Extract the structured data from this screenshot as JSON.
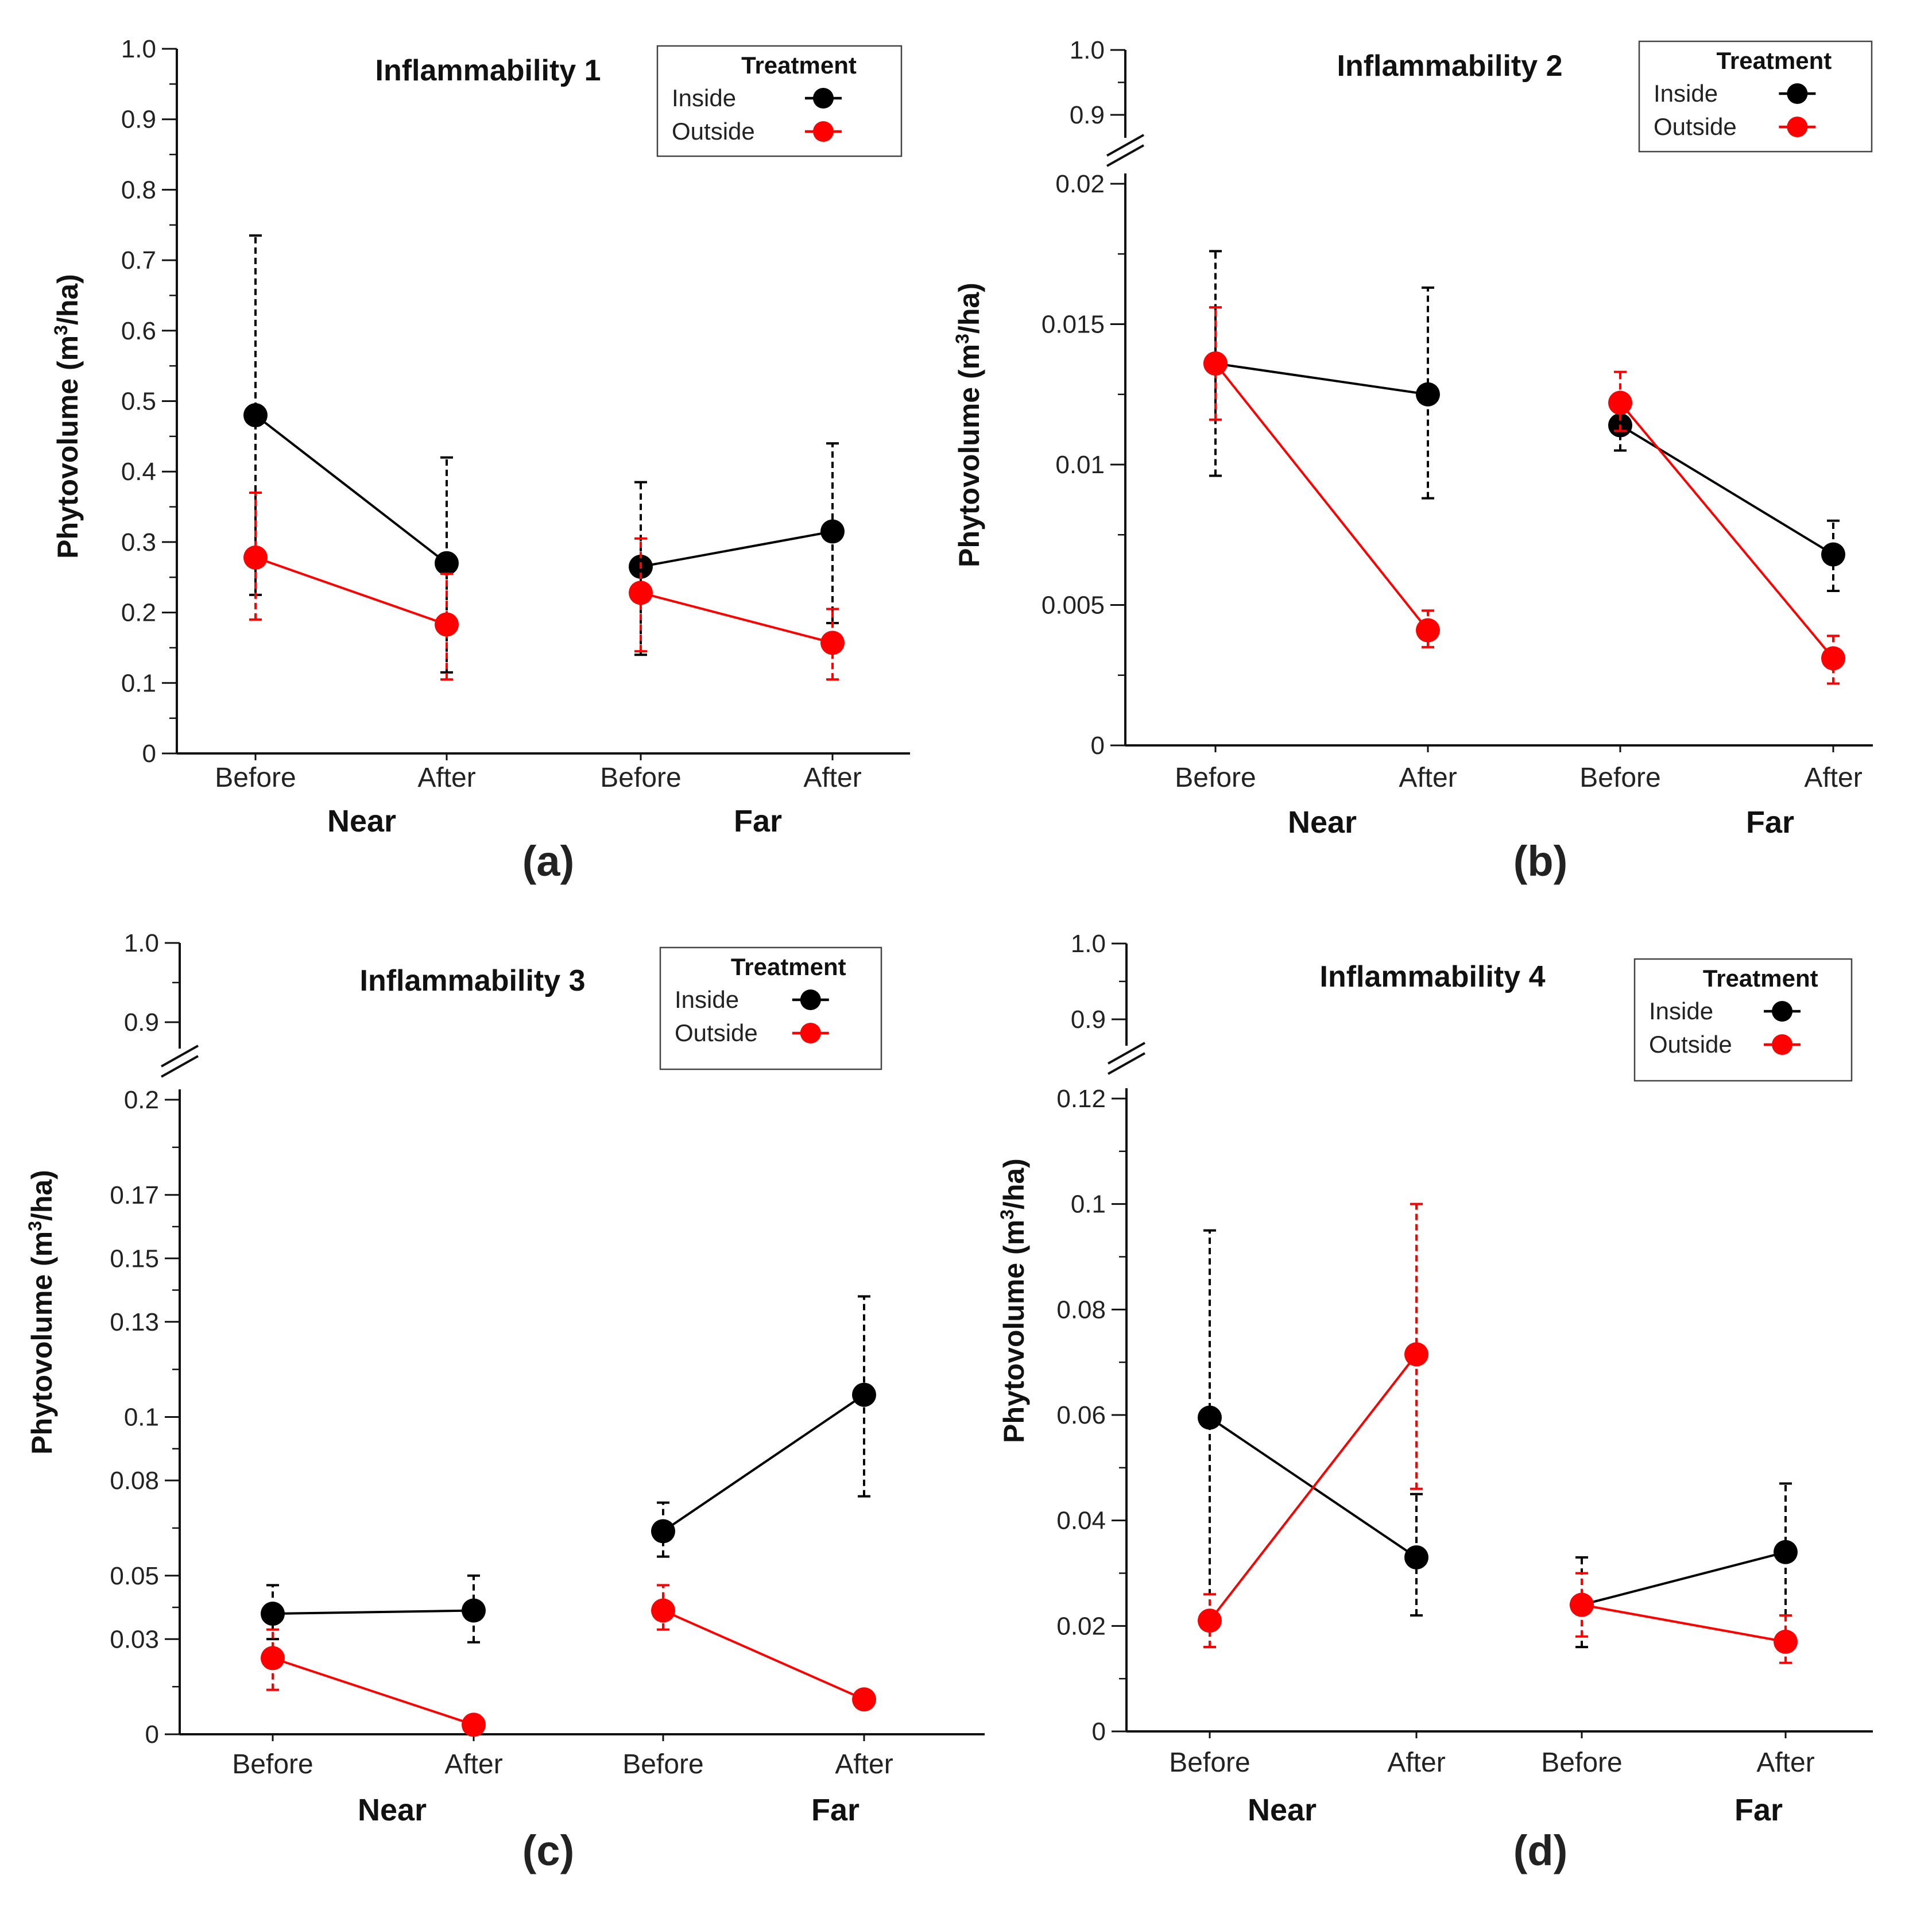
{
  "chart_data": [
    {
      "type": "line",
      "panel_label": "(a)",
      "title": "Inflammability 1",
      "ylabel": "Phytovolume (m",
      "ylabel_sup": "3",
      "ylabel_unit": "/ha)",
      "categories": [
        "Before",
        "After",
        "Before",
        "After"
      ],
      "groups": [
        "Near",
        "Far"
      ],
      "ylim": [
        0,
        1.0
      ],
      "yticks": [
        {
          "v": 0,
          "label": "0"
        },
        {
          "v": 0.1,
          "label": "0.1"
        },
        {
          "v": 0.2,
          "label": "0.2"
        },
        {
          "v": 0.3,
          "label": "0.3"
        },
        {
          "v": 0.4,
          "label": "0.4"
        },
        {
          "v": 0.5,
          "label": "0.5"
        },
        {
          "v": 0.6,
          "label": "0.6"
        },
        {
          "v": 0.7,
          "label": "0.7"
        },
        {
          "v": 0.8,
          "label": "0.8"
        },
        {
          "v": 0.9,
          "label": "0.9"
        },
        {
          "v": 1.0,
          "label": "1.0"
        }
      ],
      "legend": {
        "title": "Treatment"
      },
      "series": [
        {
          "name": "Inside",
          "color": "#000000",
          "values": [
            0.48,
            0.27,
            0.265,
            0.315
          ],
          "errors": [
            [
              0.225,
              0.735
            ],
            [
              0.115,
              0.42
            ],
            [
              0.14,
              0.385
            ],
            [
              0.185,
              0.44
            ]
          ]
        },
        {
          "name": "Outside",
          "color": "#ff0000",
          "values": [
            0.278,
            0.183,
            0.228,
            0.157
          ],
          "errors": [
            [
              0.19,
              0.37
            ],
            [
              0.105,
              0.255
            ],
            [
              0.145,
              0.305
            ],
            [
              0.105,
              0.205
            ]
          ]
        }
      ]
    },
    {
      "type": "line",
      "panel_label": "(b)",
      "title": "Inflammability 2",
      "ylabel": "Phytovolume (m",
      "ylabel_sup": "3",
      "ylabel_unit": "/ha)",
      "categories": [
        "Before",
        "After",
        "Before",
        "After"
      ],
      "groups": [
        "Near",
        "Far"
      ],
      "ylim": [
        0,
        0.02
      ],
      "broken_axis": {
        "upper_range": [
          0.9,
          1.0
        ]
      },
      "yticks": [
        {
          "v": 0,
          "label": "0"
        },
        {
          "v": 0.005,
          "label": "0.005"
        },
        {
          "v": 0.01,
          "label": "0.01"
        },
        {
          "v": 0.015,
          "label": "0.015"
        },
        {
          "v": 0.02,
          "label": "0.02"
        }
      ],
      "upper_ticks": [
        {
          "v": 0.9,
          "label": "0.9"
        },
        {
          "v": 1.0,
          "label": "1.0"
        }
      ],
      "legend": {
        "title": "Treatment"
      },
      "series": [
        {
          "name": "Inside",
          "color": "#000000",
          "values": [
            0.0136,
            0.0125,
            0.0114,
            0.0068
          ],
          "errors": [
            [
              0.0096,
              0.0176
            ],
            [
              0.0088,
              0.0163
            ],
            [
              0.0105,
              0.0121
            ],
            [
              0.0055,
              0.008
            ]
          ]
        },
        {
          "name": "Outside",
          "color": "#ff0000",
          "values": [
            0.0136,
            0.0041,
            0.0122,
            0.0031
          ],
          "errors": [
            [
              0.0116,
              0.0156
            ],
            [
              0.0035,
              0.0048
            ],
            [
              0.0112,
              0.0133
            ],
            [
              0.0022,
              0.0039
            ]
          ]
        }
      ]
    },
    {
      "type": "line",
      "panel_label": "(c)",
      "title": "Inflammability 3",
      "ylabel": "Phytovolume (m",
      "ylabel_sup": "3",
      "ylabel_unit": "/ha)",
      "categories": [
        "Before",
        "After",
        "Before",
        "After"
      ],
      "groups": [
        "Near",
        "Far"
      ],
      "ylim": [
        0,
        0.2
      ],
      "broken_axis": {
        "upper_range": [
          0.9,
          1.0
        ]
      },
      "yticks": [
        {
          "v": 0,
          "label": "0"
        },
        {
          "v": 0.03,
          "label": "0.03"
        },
        {
          "v": 0.05,
          "label": "0.05"
        },
        {
          "v": 0.08,
          "label": "0.08"
        },
        {
          "v": 0.1,
          "label": "0.1"
        },
        {
          "v": 0.13,
          "label": "0.13"
        },
        {
          "v": 0.15,
          "label": "0.15"
        },
        {
          "v": 0.17,
          "label": "0.17"
        },
        {
          "v": 0.2,
          "label": "0.2"
        }
      ],
      "upper_ticks": [
        {
          "v": 0.9,
          "label": "0.9"
        },
        {
          "v": 1.0,
          "label": "1.0"
        }
      ],
      "legend": {
        "title": "Treatment"
      },
      "series": [
        {
          "name": "Inside",
          "color": "#000000",
          "values": [
            0.038,
            0.039,
            0.064,
            0.107
          ],
          "errors": [
            [
              0.03,
              0.047
            ],
            [
              0.029,
              0.05
            ],
            [
              0.056,
              0.073
            ],
            [
              0.075,
              0.138
            ]
          ]
        },
        {
          "name": "Outside",
          "color": "#ff0000",
          "values": [
            0.024,
            0.003,
            0.039,
            0.011
          ],
          "errors": [
            [
              0.014,
              0.033
            ],
            [
              0.002,
              0.004
            ],
            [
              0.033,
              0.047
            ],
            [
              0.009,
              0.013
            ]
          ]
        }
      ]
    },
    {
      "type": "line",
      "panel_label": "(d)",
      "title": "Inflammability 4",
      "ylabel": "Phytovolume (m",
      "ylabel_sup": "3",
      "ylabel_unit": "/ha)",
      "categories": [
        "Before",
        "After",
        "Before",
        "After"
      ],
      "groups": [
        "Near",
        "Far"
      ],
      "ylim": [
        0,
        0.12
      ],
      "broken_axis": {
        "upper_range": [
          0.9,
          1.0
        ]
      },
      "yticks": [
        {
          "v": 0,
          "label": "0"
        },
        {
          "v": 0.02,
          "label": "0.02"
        },
        {
          "v": 0.04,
          "label": "0.04"
        },
        {
          "v": 0.06,
          "label": "0.06"
        },
        {
          "v": 0.08,
          "label": "0.08"
        },
        {
          "v": 0.1,
          "label": "0.1"
        },
        {
          "v": 0.12,
          "label": "0.12"
        }
      ],
      "upper_ticks": [
        {
          "v": 0.9,
          "label": "0.9"
        },
        {
          "v": 1.0,
          "label": "1.0"
        }
      ],
      "legend": {
        "title": "Treatment"
      },
      "series": [
        {
          "name": "Inside",
          "color": "#000000",
          "values": [
            0.0595,
            0.033,
            0.024,
            0.034
          ],
          "errors": [
            [
              0.016,
              0.095
            ],
            [
              0.022,
              0.045
            ],
            [
              0.016,
              0.033
            ],
            [
              0.022,
              0.047
            ]
          ]
        },
        {
          "name": "Outside",
          "color": "#ff0000",
          "values": [
            0.021,
            0.0715,
            0.024,
            0.017
          ],
          "errors": [
            [
              0.016,
              0.026
            ],
            [
              0.046,
              0.1
            ],
            [
              0.018,
              0.03
            ],
            [
              0.013,
              0.022
            ]
          ]
        }
      ]
    }
  ]
}
